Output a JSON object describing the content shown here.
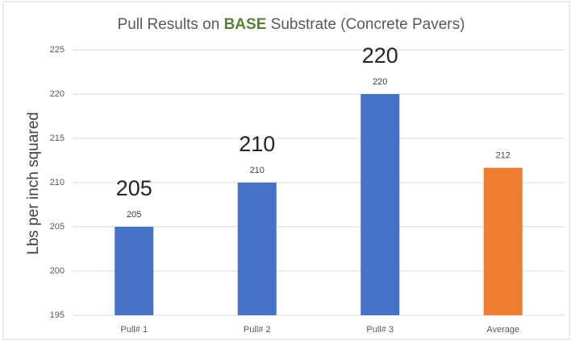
{
  "chart_data": {
    "type": "bar",
    "title_parts": [
      "Pull Results on ",
      "BASE",
      " Substrate (Concrete Pavers)"
    ],
    "y_label": "Lbs per inch squared",
    "categories": [
      "Pull# 1",
      "Pull# 2",
      "Pull# 3",
      "Average"
    ],
    "values": [
      205,
      210,
      220,
      211.67
    ],
    "value_labels": [
      "205",
      "210",
      "220",
      "212"
    ],
    "annotations": [
      "205",
      "210",
      "220"
    ],
    "colors": [
      "#4472c4",
      "#4472c4",
      "#4472c4",
      "#ed7d31"
    ],
    "ylim": [
      195,
      225
    ],
    "yticks": [
      195,
      200,
      205,
      210,
      215,
      220,
      225
    ],
    "grid": true
  }
}
